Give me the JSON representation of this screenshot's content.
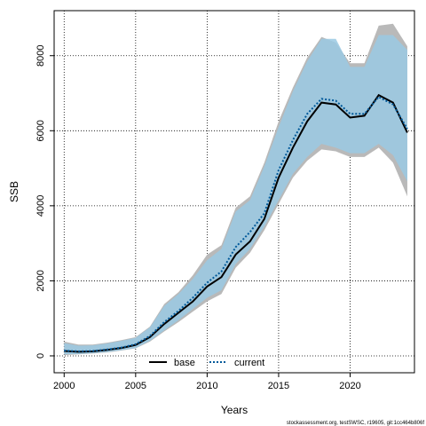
{
  "chart_data": {
    "type": "line",
    "xlabel": "Years",
    "ylabel": "SSB",
    "xlim": [
      1999.3,
      2024.5
    ],
    "ylim": [
      -450,
      9200
    ],
    "xticks": [
      2000,
      2005,
      2010,
      2015,
      2020
    ],
    "yticks": [
      0,
      2000,
      4000,
      6000,
      8000
    ],
    "grid": true,
    "legend_position": "bottom-center",
    "x": [
      2000,
      2001,
      2002,
      2003,
      2004,
      2005,
      2006,
      2007,
      2008,
      2009,
      2010,
      2011,
      2012,
      2013,
      2014,
      2015,
      2016,
      2017,
      2018,
      2019,
      2020,
      2021,
      2022,
      2023,
      2024
    ],
    "series": [
      {
        "name": "base",
        "color": "#000000",
        "linestyle": "solid",
        "values": [
          130,
          110,
          120,
          160,
          210,
          290,
          500,
          850,
          1150,
          1450,
          1850,
          2100,
          2700,
          3050,
          3650,
          4750,
          5550,
          6250,
          6750,
          6700,
          6350,
          6400,
          6950,
          6750,
          5950
        ],
        "band_lower": [
          20,
          40,
          60,
          90,
          140,
          200,
          380,
          650,
          900,
          1180,
          1450,
          1650,
          2350,
          2750,
          3350,
          4050,
          4750,
          5200,
          5500,
          5450,
          5300,
          5300,
          5550,
          5150,
          4250
        ],
        "band_upper": [
          380,
          300,
          300,
          350,
          420,
          500,
          780,
          1380,
          1700,
          2150,
          2700,
          2950,
          3950,
          4250,
          5150,
          6250,
          7150,
          7950,
          8500,
          8350,
          7800,
          7800,
          8800,
          8850,
          8250
        ],
        "band_color": "#b9b9b9"
      },
      {
        "name": "current",
        "color": "#00599a",
        "linestyle": "dotted",
        "values": [
          140,
          120,
          130,
          170,
          220,
          310,
          530,
          900,
          1200,
          1550,
          1950,
          2250,
          2900,
          3300,
          3800,
          4950,
          5750,
          6450,
          6850,
          6800,
          6450,
          6450,
          6900,
          6700,
          6050
        ],
        "band_lower": [
          40,
          50,
          70,
          100,
          150,
          210,
          400,
          680,
          950,
          1250,
          1550,
          1750,
          2450,
          2850,
          3450,
          4150,
          4850,
          5300,
          5650,
          5550,
          5400,
          5400,
          5650,
          5350,
          4650
        ],
        "band_upper": [
          340,
          270,
          280,
          330,
          400,
          480,
          760,
          1330,
          1650,
          2050,
          2550,
          2850,
          3850,
          4150,
          5050,
          6100,
          7050,
          7850,
          8450,
          8450,
          7700,
          7700,
          8550,
          8550,
          8150
        ],
        "band_color": "#9ac9e3"
      }
    ],
    "footer": "stockassessment.org, testSWSC, r19605, git:1cc464b806f"
  }
}
